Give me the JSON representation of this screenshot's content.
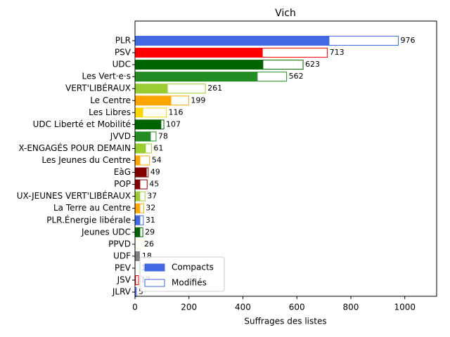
{
  "chart_data": {
    "type": "stacked-barh",
    "title": "Vich",
    "xlabel": "Suffrages des listes",
    "categories": [
      "PLR",
      "PSV",
      "UDC",
      "Les Vert·e·s",
      "VERT'LIBÉRAUX",
      "Le Centre",
      "Les Libres",
      "UDC Liberté et Mobilité",
      "JVVD",
      "X-ENGAGÉS POUR DEMAIN",
      "Les Jeunes du Centre",
      "EàG",
      "POP",
      "UX-JEUNES VERT'LIBÉRAUX",
      "La Terre au Centre",
      "PLR.Énergie libérale",
      "Jeunes UDC",
      "PPVD",
      "UDF",
      "PEV",
      "JSV",
      "JLRV"
    ],
    "colors": [
      "#4169e1",
      "#ff0000",
      "#006400",
      "#228b22",
      "#9acd32",
      "#ffa500",
      "#ffd700",
      "#006400",
      "#228b22",
      "#9acd32",
      "#ffa500",
      "#800000",
      "#8b0000",
      "#9acd32",
      "#ffa500",
      "#4169e1",
      "#006400",
      "#fffacd",
      "#808080",
      "#f5f5f5",
      "#ff0000",
      "#4169e1"
    ],
    "series": [
      {
        "name": "Compacts",
        "color": "#4169e1",
        "values": [
          719,
          472,
          474,
          453,
          120,
          133,
          29,
          96,
          57,
          39,
          18,
          42,
          18,
          18,
          18,
          18,
          18,
          2,
          18,
          1,
          2,
          2
        ]
      },
      {
        "name": "Modifiés",
        "color": "#ffffff",
        "values": [
          257,
          241,
          149,
          109,
          141,
          66,
          87,
          11,
          21,
          22,
          36,
          7,
          27,
          19,
          14,
          13,
          11,
          24,
          0,
          14,
          11,
          3
        ]
      }
    ],
    "totals": [
      976,
      713,
      623,
      562,
      261,
      199,
      116,
      107,
      78,
      61,
      54,
      49,
      45,
      37,
      32,
      31,
      29,
      26,
      18,
      15,
      13,
      5
    ],
    "xlim": [
      0,
      1118
    ],
    "xticks": [
      0,
      200,
      400,
      600,
      800,
      1000
    ],
    "legend": "lower left"
  }
}
